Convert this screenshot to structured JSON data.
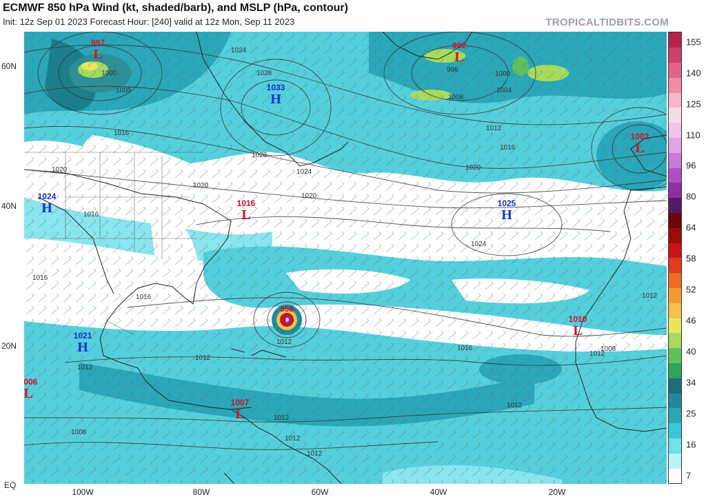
{
  "header": {
    "title": "ECMWF 850 hPa Wind (kt, shaded/barb), and MSLP (hPa, contour)",
    "subtitle": "Init: 12z Sep 01 2023   Forecast Hour: [240]   valid at 12z Mon, Sep 11 2023",
    "brand": "TROPICALTIDBITS.COM"
  },
  "axes": {
    "lat_labels": [
      "60N",
      "40N",
      "20N",
      "EQ"
    ],
    "lon_labels": [
      "100W",
      "80W",
      "60W",
      "40W",
      "20W"
    ]
  },
  "colorbar": {
    "labels": [
      "155",
      "140",
      "125",
      "110",
      "96",
      "80",
      "64",
      "58",
      "52",
      "46",
      "40",
      "34",
      "25",
      "16",
      "7"
    ],
    "colors": [
      "#ffffff",
      "#b8f3f8",
      "#6fe0ec",
      "#3cc7d6",
      "#2da7b8",
      "#218a9a",
      "#1b6e7e",
      "#2ea35a",
      "#5fc05c",
      "#a7db5f",
      "#e8e660",
      "#f2c24a",
      "#f39a34",
      "#ee6a25",
      "#e23a1c",
      "#c81414",
      "#9a0c0c",
      "#6e0606",
      "#541a64",
      "#8e2fa0",
      "#b04ec4",
      "#cc7ad8",
      "#dfa4e6",
      "#eec6ee",
      "#f5dbe7",
      "#f3b8c8",
      "#ec8ea6",
      "#e2648a",
      "#cf3e6c",
      "#b4224f"
    ]
  },
  "pressure_centers": [
    {
      "type": "L",
      "value": "997"
    },
    {
      "type": "L",
      "value": "992"
    },
    {
      "type": "H",
      "value": "1033"
    },
    {
      "type": "L",
      "value": "1002"
    },
    {
      "type": "H",
      "value": "1024"
    },
    {
      "type": "L",
      "value": "1016"
    },
    {
      "type": "H",
      "value": "1025"
    },
    {
      "type": "L",
      "value": "956"
    },
    {
      "type": "L",
      "value": "1010"
    },
    {
      "type": "H",
      "value": "1021"
    },
    {
      "type": "L",
      "value": "1006"
    },
    {
      "type": "L",
      "value": "1007"
    }
  ],
  "isobar_labels": [
    "1024",
    "1028",
    "1000",
    "1008",
    "996",
    "1000",
    "1004",
    "1008",
    "1012",
    "1016",
    "1020",
    "1016",
    "1028",
    "1024",
    "1020",
    "1020",
    "1020",
    "1024",
    "1016",
    "1016",
    "1016",
    "1012",
    "1012",
    "1016",
    "1012",
    "1012",
    "1012",
    "1008",
    "1012",
    "1012",
    "1012",
    "1012",
    "1008"
  ]
}
